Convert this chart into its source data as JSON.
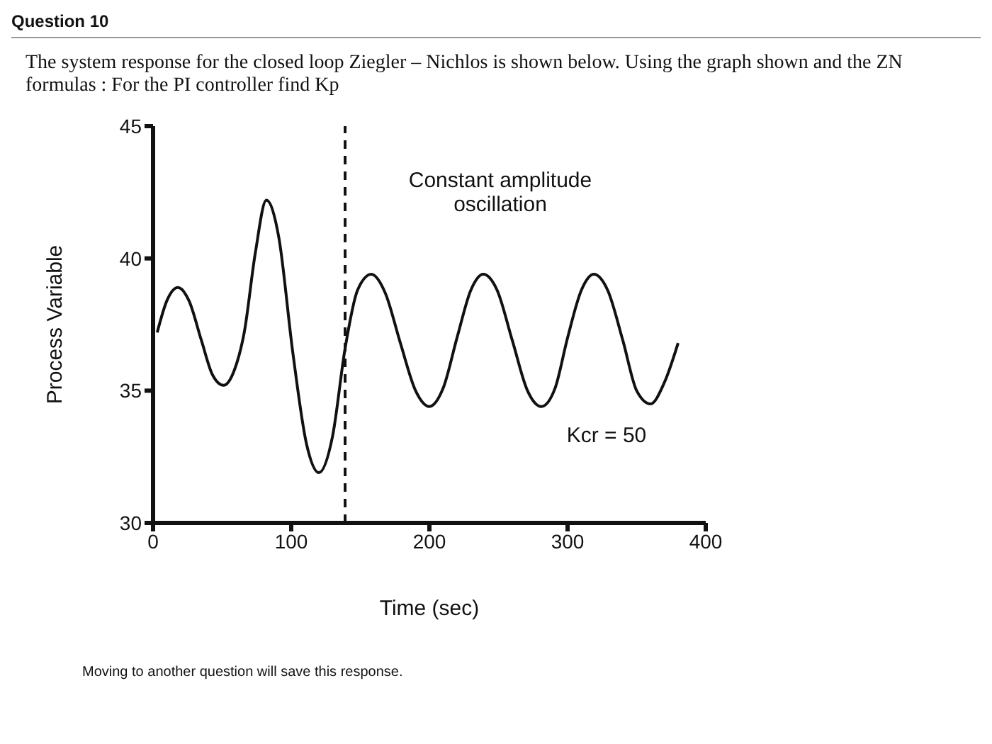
{
  "chart_data": {
    "type": "line",
    "title": "Question 10",
    "subtitle": "The system response for the closed loop Ziegler – Nichlos is shown below. Using the graph shown and the ZN formulas : For the PI controller find Kp",
    "xlabel": "Time  (sec)",
    "ylabel": "Process Variable",
    "x": [
      3,
      10,
      18,
      26,
      35,
      43,
      51,
      59,
      66,
      74,
      82,
      91,
      101,
      111,
      120,
      130,
      139,
      148,
      158,
      168,
      179,
      190,
      200,
      210,
      220,
      230,
      239,
      249,
      260,
      271,
      281,
      291,
      300,
      310,
      319,
      329,
      340,
      350,
      360,
      370,
      380
    ],
    "series": [
      {
        "color": "#111111",
        "values": [
          37.2,
          38.4,
          38.9,
          38.4,
          36.9,
          35.6,
          35.2,
          35.8,
          37.2,
          40.2,
          42.2,
          40.8,
          36.5,
          33.0,
          31.9,
          33.3,
          36.6,
          38.8,
          39.4,
          38.7,
          36.8,
          35.0,
          34.4,
          35.1,
          37.0,
          38.8,
          39.4,
          38.8,
          36.9,
          35.0,
          34.4,
          35.1,
          37.0,
          38.8,
          39.4,
          38.8,
          36.9,
          35.0,
          34.5,
          35.3,
          36.8
        ]
      }
    ],
    "xlim": [
      0,
      400
    ],
    "ylim": [
      30,
      45
    ],
    "xticks": [
      0,
      100,
      200,
      300,
      400
    ],
    "yticks": [
      30,
      35,
      40,
      45
    ],
    "grid": false,
    "legend": false,
    "marker": "none",
    "line_style": "solid",
    "ref_lines": [
      {
        "axis": "x",
        "value": 139,
        "color": "#111111",
        "line_style": "dashed"
      }
    ],
    "annotations": [
      "Constant amplitude oscillation",
      "Kcr = 50",
      "Moving to another question will save this response."
    ]
  }
}
